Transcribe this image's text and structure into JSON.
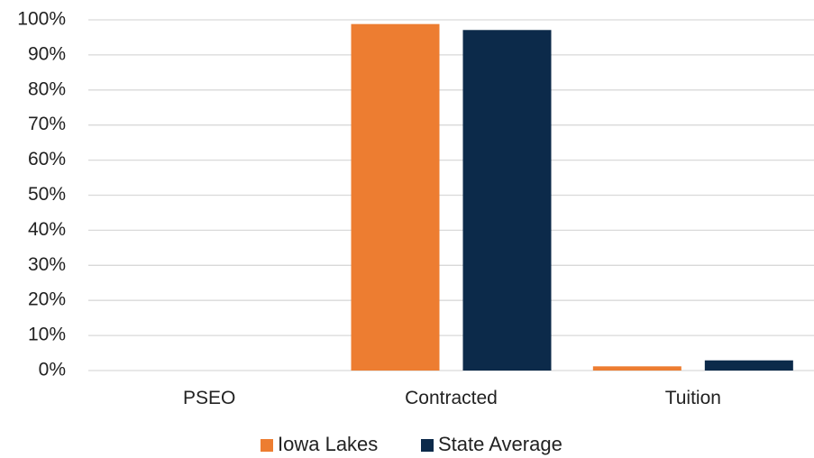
{
  "chart_data": {
    "type": "bar",
    "categories": [
      "PSEO",
      "Contracted",
      "Tuition"
    ],
    "series": [
      {
        "name": "Iowa Lakes",
        "color": "#ED7D31",
        "values": [
          0,
          98.8,
          1.2
        ]
      },
      {
        "name": "State Average",
        "color": "#0C2A4A",
        "values": [
          0,
          97.1,
          2.9
        ]
      }
    ],
    "ylim": [
      0,
      100
    ],
    "yticks": [
      "0%",
      "10%",
      "20%",
      "30%",
      "40%",
      "50%",
      "60%",
      "70%",
      "80%",
      "90%",
      "100%"
    ],
    "grid": true,
    "legend_position": "bottom"
  }
}
